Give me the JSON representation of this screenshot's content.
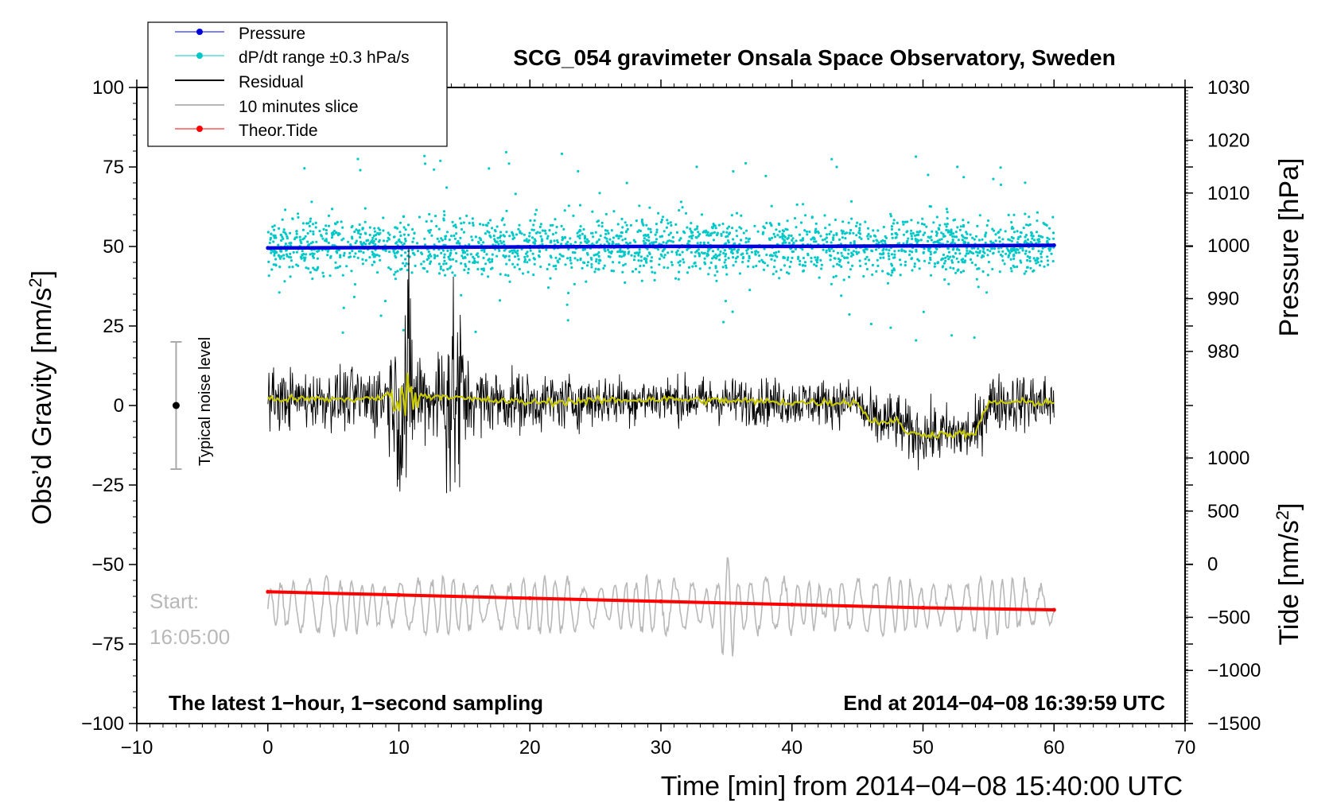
{
  "chart_data": {
    "type": "line",
    "title": "SCG_054 gravimeter Onsala Space Observatory, Sweden",
    "xlabel": "Time [min] from 2014−04−08 15:40:00 UTC",
    "xlim": [
      -10,
      70
    ],
    "xticks": [
      "−10",
      "0",
      "10",
      "20",
      "30",
      "40",
      "50",
      "60",
      "70"
    ],
    "left_axis": {
      "label_prefix": "Obs’d Gravity [nm/s",
      "label_superscript": "2",
      "label_suffix": "]",
      "ylim": [
        -100,
        100
      ],
      "ticks": [
        "−100",
        "−75",
        "−50",
        "−25",
        "0",
        "25",
        "50",
        "75",
        "100"
      ]
    },
    "right_axis_pressure": {
      "label": "Pressure [hPa]",
      "ticks": [
        "980",
        "990",
        "1000",
        "1010",
        "1020",
        "1030"
      ],
      "data_range": [
        980,
        1030
      ]
    },
    "right_axis_tide": {
      "label_prefix": "Tide [nm/s",
      "label_superscript": "2",
      "label_suffix": "]",
      "ticks": [
        "−1500",
        "−1000",
        "−500",
        "0",
        "500",
        "1000"
      ],
      "data_range": [
        -1500,
        1000
      ]
    },
    "legend": {
      "position": "top-left",
      "entries": [
        {
          "label": "Pressure",
          "color": "#0000dd",
          "marker": true
        },
        {
          "label": "dP/dt range ±0.3 hPa/s",
          "color": "#00c8c8",
          "marker": true
        },
        {
          "label": "Residual",
          "color": "#000000",
          "marker": false
        },
        {
          "label": "10 minutes slice",
          "color": "#b8b8b8",
          "marker": false
        },
        {
          "label": "Theor.Tide",
          "color": "#ff0000",
          "marker": true
        }
      ]
    },
    "series": [
      {
        "name": "Pressure",
        "axis": "pressure",
        "color": "#0000dd",
        "x": [
          0,
          10,
          20,
          30,
          40,
          50,
          60
        ],
        "y": [
          999.6,
          999.7,
          999.8,
          999.9,
          999.9,
          1000.0,
          1000.1
        ]
      },
      {
        "name": "dP/dt range ±0.3 hPa/s",
        "axis": "pressure",
        "color": "#00c8c8",
        "center": 1000,
        "spread_typical": 5,
        "spread_max": 20
      },
      {
        "name": "Residual",
        "axis": "gravity",
        "color": "#000000",
        "x": [
          0,
          5,
          8,
          10,
          11,
          12,
          14,
          15,
          20,
          30,
          40,
          45,
          46,
          48,
          49,
          50,
          52,
          54,
          55,
          60
        ],
        "y": [
          2,
          2,
          2,
          4,
          3,
          3,
          3,
          2,
          1,
          2,
          1,
          1,
          -5,
          -5,
          -9,
          -9,
          -9,
          -9,
          1,
          1
        ],
        "noise_std": [
          5,
          5,
          6,
          10,
          9,
          8,
          10,
          6,
          5,
          4,
          4,
          4,
          5,
          5,
          5,
          5,
          5,
          5,
          5,
          5
        ]
      },
      {
        "name": "Residual smoothed",
        "axis": "gravity",
        "color": "#c8c800",
        "x": [
          0,
          5,
          8,
          10,
          11,
          12,
          14,
          15,
          20,
          30,
          40,
          45,
          46,
          48,
          49,
          50,
          52,
          54,
          55,
          60
        ],
        "y": [
          2,
          2,
          2,
          4,
          3,
          3,
          3,
          2,
          1,
          2,
          1,
          1,
          -5,
          -5,
          -9,
          -9,
          -9,
          -9,
          1,
          1
        ]
      },
      {
        "name": "10 minutes slice",
        "axis": "gravity",
        "color": "#b8b8b8",
        "center": -63,
        "amplitude_typical": 6,
        "amplitude_max": 15
      },
      {
        "name": "Theor.Tide",
        "axis": "tide",
        "color": "#ff0000",
        "x": [
          0,
          10,
          20,
          30,
          40,
          50,
          60
        ],
        "y": [
          -260,
          -290,
          -320,
          -350,
          -380,
          -410,
          -430
        ]
      }
    ],
    "noise_bar": {
      "label": "Typical noise level",
      "x": -7,
      "center": 0,
      "low": -20,
      "high": 20
    },
    "annotations": {
      "bottom_left": "The latest 1−hour, 1−second sampling",
      "bottom_right": "End at 2014−04−08 16:39:59 UTC",
      "start_label": "Start:",
      "start_time": "16:05:00"
    },
    "colors": {
      "pressure": "#0000dd",
      "dpdt": "#00c8c8",
      "residual": "#000000",
      "smoothed": "#c8c800",
      "slice": "#b8b8b8",
      "tide": "#ff0000"
    }
  }
}
